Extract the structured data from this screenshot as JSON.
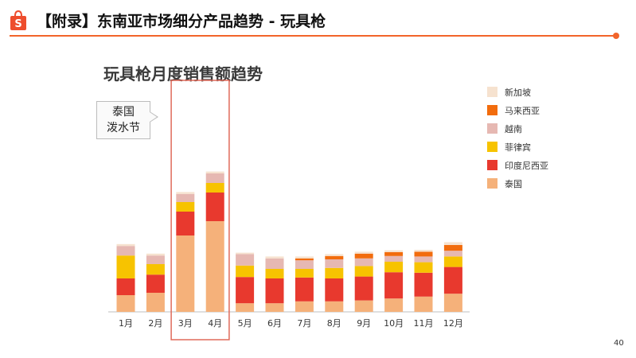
{
  "slide": {
    "title": "【附录】东南亚市场细分产品趋势 - 玩具枪",
    "page_number": "40"
  },
  "chart_data": {
    "type": "bar",
    "stacked": true,
    "title": "玩具枪月度销售额趋势",
    "categories": [
      "1月",
      "2月",
      "3月",
      "4月",
      "5月",
      "6月",
      "7月",
      "8月",
      "9月",
      "10月",
      "11月",
      "12月"
    ],
    "series": [
      {
        "name": "泰国",
        "color": "#f5b17a",
        "values": [
          35,
          40,
          160,
          190,
          18,
          18,
          22,
          22,
          24,
          28,
          32,
          38
        ]
      },
      {
        "name": "印度尼西亚",
        "color": "#e8392e",
        "values": [
          35,
          38,
          50,
          60,
          55,
          52,
          50,
          48,
          50,
          55,
          50,
          56
        ]
      },
      {
        "name": "菲律宾",
        "color": "#f7c300",
        "values": [
          48,
          22,
          20,
          20,
          24,
          20,
          18,
          22,
          22,
          22,
          22,
          22
        ]
      },
      {
        "name": "越南",
        "color": "#e6b8b2",
        "values": [
          20,
          18,
          17,
          20,
          24,
          22,
          18,
          18,
          16,
          12,
          12,
          12
        ]
      },
      {
        "name": "马来西亚",
        "color": "#f26c0d",
        "values": [
          0,
          0,
          0,
          0,
          0,
          0,
          4,
          7,
          10,
          8,
          10,
          12
        ]
      },
      {
        "name": "新加坡",
        "color": "#f6e2cf",
        "values": [
          4,
          4,
          4,
          4,
          3,
          4,
          4,
          4,
          4,
          4,
          4,
          6
        ]
      }
    ],
    "legend_order": [
      "新加坡",
      "马来西亚",
      "越南",
      "菲律宾",
      "印度尼西亚",
      "泰国"
    ],
    "highlight_categories": [
      "3月",
      "4月"
    ],
    "highlight_color": "#e06a5a",
    "annotation": "泰国\n泼水节",
    "legend_position": "right",
    "grid": false
  }
}
